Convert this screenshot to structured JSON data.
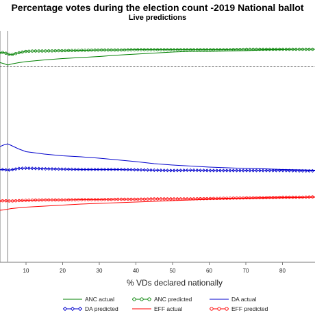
{
  "chart_data": {
    "type": "line",
    "title": "Percentage votes during the election count -2019 National ballot",
    "subtitle": "Live predictions",
    "xlabel": "% VDs declared nationally",
    "ylabel": "",
    "xlim": [
      0,
      89
    ],
    "ylim": [
      10,
      65
    ],
    "x_ticks": [
      10,
      20,
      30,
      40,
      50,
      60,
      70,
      80
    ],
    "reference_vline_x": 5,
    "reference_hline_y": 57.5,
    "series": [
      {
        "name": "ANC actual",
        "color": "#008000",
        "marker": "none",
        "x": [
          0,
          2,
          4,
          5,
          6,
          8,
          10,
          15,
          20,
          25,
          30,
          35,
          40,
          45,
          50,
          55,
          60,
          65,
          70,
          75,
          80,
          85,
          89
        ],
        "y": [
          59.2,
          59.0,
          58.4,
          58.0,
          58.3,
          58.7,
          59.0,
          59.5,
          59.9,
          60.2,
          60.5,
          60.9,
          61.2,
          61.5,
          61.8,
          62.0,
          62.0,
          62.1,
          62.2,
          62.4,
          62.5,
          62.6,
          62.6
        ]
      },
      {
        "name": "ANC predicted",
        "color": "#008000",
        "marker": "circle",
        "x": [
          0,
          2,
          4,
          5,
          6,
          8,
          10,
          12,
          15,
          20,
          25,
          30,
          35,
          40,
          45,
          50,
          55,
          60,
          65,
          70,
          75,
          80,
          85,
          89
        ],
        "y": [
          61.5,
          61.5,
          61.7,
          61.2,
          61.0,
          61.6,
          62.0,
          62.1,
          62.1,
          62.2,
          62.3,
          62.4,
          62.4,
          62.5,
          62.5,
          62.5,
          62.5,
          62.5,
          62.5,
          62.6,
          62.6,
          62.6,
          62.6,
          62.6
        ]
      },
      {
        "name": "DA actual",
        "color": "#0000cc",
        "marker": "none",
        "x": [
          0,
          2,
          4,
          5,
          6,
          8,
          10,
          15,
          20,
          25,
          30,
          35,
          40,
          45,
          50,
          55,
          60,
          65,
          70,
          75,
          80,
          85,
          89
        ],
        "y": [
          33.0,
          33.8,
          34.7,
          35.0,
          34.5,
          33.5,
          32.7,
          32.0,
          31.5,
          31.2,
          30.8,
          30.3,
          29.8,
          29.2,
          28.8,
          28.5,
          28.2,
          28.0,
          27.8,
          27.7,
          27.5,
          27.4,
          27.3
        ]
      },
      {
        "name": "DA predicted",
        "color": "#0000cc",
        "marker": "diamond",
        "x": [
          0,
          2,
          4,
          5,
          6,
          8,
          10,
          15,
          20,
          25,
          30,
          35,
          40,
          45,
          50,
          55,
          60,
          65,
          70,
          75,
          80,
          85,
          89
        ],
        "y": [
          27.5,
          27.4,
          27.5,
          27.3,
          27.4,
          27.8,
          27.9,
          27.7,
          27.6,
          27.5,
          27.5,
          27.5,
          27.4,
          27.3,
          27.2,
          27.3,
          27.2,
          27.2,
          27.2,
          27.2,
          27.2,
          27.1,
          27.1
        ]
      },
      {
        "name": "EFF actual",
        "color": "#ff0000",
        "marker": "none",
        "x": [
          0,
          2,
          4,
          5,
          6,
          8,
          10,
          15,
          20,
          25,
          30,
          35,
          40,
          45,
          50,
          55,
          60,
          65,
          70,
          75,
          80,
          85,
          89
        ],
        "y": [
          15.6,
          15.5,
          15.7,
          15.9,
          16.1,
          16.3,
          16.5,
          16.8,
          17.1,
          17.4,
          17.6,
          17.8,
          18.0,
          18.2,
          18.4,
          18.6,
          18.8,
          18.9,
          19.0,
          19.1,
          19.2,
          19.3,
          19.4
        ]
      },
      {
        "name": "EFF predicted",
        "color": "#ff0000",
        "marker": "circle",
        "x": [
          0,
          2,
          4,
          5,
          6,
          8,
          10,
          15,
          20,
          25,
          30,
          35,
          40,
          45,
          50,
          55,
          60,
          65,
          70,
          75,
          80,
          85,
          89
        ],
        "y": [
          18.8,
          18.2,
          18.4,
          18.3,
          18.3,
          18.4,
          18.5,
          18.6,
          18.6,
          18.7,
          18.7,
          18.8,
          18.8,
          18.9,
          18.9,
          18.9,
          19.0,
          19.1,
          19.2,
          19.3,
          19.4,
          19.4,
          19.5
        ]
      }
    ],
    "legend": {
      "placement": "bottom",
      "entries": [
        "ANC actual",
        "ANC predicted",
        "DA actual",
        "DA predicted",
        "EFF actual",
        "EFF predicted"
      ]
    }
  }
}
